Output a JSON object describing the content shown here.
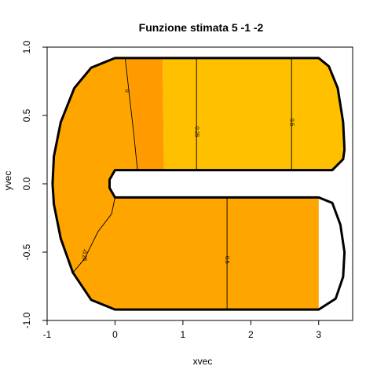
{
  "chart_data": {
    "type": "contour",
    "title": "Funzione stimata 5 -1 -2",
    "xlabel": "xvec",
    "ylabel": "yvec",
    "xlim": [
      -1.0,
      3.5
    ],
    "ylim": [
      -1.0,
      1.0
    ],
    "x_ticks": [
      -1,
      0,
      1,
      2,
      3
    ],
    "x_tick_labels": [
      "-1",
      "0",
      "1",
      "2",
      "3"
    ],
    "y_ticks": [
      -1.0,
      -0.5,
      0.0,
      0.5,
      1.0
    ],
    "y_tick_labels": [
      "-1.0",
      "-0.5",
      "0.0",
      "0.5",
      "1.0"
    ],
    "colors": {
      "orange": "#ffa500",
      "dark_orange": "#ff9a00",
      "yellow": "#ffc000",
      "contour": "#000000",
      "boundary": "#000000"
    },
    "domain": {
      "shape": "horseshoe",
      "outer_boundary": [
        [
          0.0,
          0.92
        ],
        [
          3.0,
          0.92
        ],
        [
          3.15,
          0.86
        ],
        [
          3.28,
          0.7
        ],
        [
          3.36,
          0.45
        ],
        [
          3.38,
          0.25
        ],
        [
          3.36,
          0.18
        ],
        [
          3.2,
          0.1
        ],
        [
          3.0,
          0.1
        ],
        [
          0.0,
          0.1
        ],
        [
          -0.08,
          0.03
        ],
        [
          -0.08,
          -0.03
        ],
        [
          0.0,
          -0.1
        ],
        [
          3.0,
          -0.1
        ],
        [
          3.2,
          -0.14
        ],
        [
          3.32,
          -0.3
        ],
        [
          3.38,
          -0.5
        ],
        [
          3.36,
          -0.68
        ],
        [
          3.25,
          -0.84
        ],
        [
          3.0,
          -0.92
        ],
        [
          0.0,
          -0.92
        ],
        [
          -0.35,
          -0.85
        ],
        [
          -0.62,
          -0.65
        ],
        [
          -0.8,
          -0.4
        ],
        [
          -0.9,
          -0.15
        ],
        [
          -0.92,
          0.0
        ],
        [
          -0.9,
          0.2
        ],
        [
          -0.8,
          0.45
        ],
        [
          -0.6,
          0.7
        ],
        [
          -0.35,
          0.85
        ]
      ]
    },
    "fill_regions": [
      {
        "name": "upper-light-orange",
        "color": "orange",
        "polygon": [
          [
            0.0,
            0.92
          ],
          [
            0.7,
            0.92
          ],
          [
            0.7,
            0.1
          ],
          [
            0.0,
            0.1
          ],
          [
            -0.08,
            0.03
          ],
          [
            -0.08,
            -0.03
          ],
          [
            0.0,
            -0.1
          ],
          [
            3.0,
            -0.1
          ],
          [
            3.0,
            -0.92
          ],
          [
            0.0,
            -0.92
          ],
          [
            -0.35,
            -0.85
          ],
          [
            -0.62,
            -0.65
          ],
          [
            -0.8,
            -0.4
          ],
          [
            -0.9,
            -0.15
          ],
          [
            -0.92,
            0.0
          ],
          [
            -0.9,
            0.2
          ],
          [
            -0.8,
            0.45
          ],
          [
            -0.6,
            0.7
          ],
          [
            -0.35,
            0.85
          ]
        ]
      },
      {
        "name": "upper-dark-orange",
        "color": "dark_orange",
        "polygon": [
          [
            0.18,
            0.92
          ],
          [
            0.7,
            0.92
          ],
          [
            0.72,
            0.1
          ],
          [
            0.33,
            0.1
          ],
          [
            0.3,
            0.35
          ],
          [
            0.22,
            0.7
          ]
        ]
      },
      {
        "name": "upper-yellow",
        "color": "yellow",
        "polygon": [
          [
            0.7,
            0.92
          ],
          [
            3.0,
            0.92
          ],
          [
            3.15,
            0.86
          ],
          [
            3.28,
            0.7
          ],
          [
            3.36,
            0.45
          ],
          [
            3.38,
            0.25
          ],
          [
            3.36,
            0.18
          ],
          [
            3.2,
            0.1
          ],
          [
            0.72,
            0.1
          ]
        ]
      }
    ],
    "contours": [
      {
        "level": "0",
        "label": "0",
        "path": [
          [
            0.15,
            0.92
          ],
          [
            0.2,
            0.7
          ],
          [
            0.28,
            0.35
          ],
          [
            0.33,
            0.1
          ]
        ],
        "label_at": [
          0.17,
          0.68
        ]
      },
      {
        "level": "0.25",
        "label": "0.25",
        "path": [
          [
            1.2,
            0.92
          ],
          [
            1.2,
            0.1
          ]
        ],
        "label_at": [
          1.2,
          0.38
        ]
      },
      {
        "level": "0.5",
        "label": "0.5",
        "path": [
          [
            2.6,
            0.92
          ],
          [
            2.6,
            0.1
          ]
        ],
        "label_at": [
          2.6,
          0.45
        ]
      },
      {
        "level": "-0.25",
        "label": "-0.25",
        "path": [
          [
            0.0,
            -0.1
          ],
          [
            -0.05,
            -0.22
          ],
          [
            -0.25,
            -0.35
          ],
          [
            -0.45,
            -0.55
          ],
          [
            -0.62,
            -0.65
          ]
        ],
        "label_at": [
          -0.45,
          -0.52
        ]
      },
      {
        "level": "-0.5",
        "label": "-0.5",
        "path": [
          [
            1.65,
            -0.1
          ],
          [
            1.65,
            -0.92
          ]
        ],
        "label_at": [
          1.65,
          -0.55
        ]
      }
    ]
  }
}
